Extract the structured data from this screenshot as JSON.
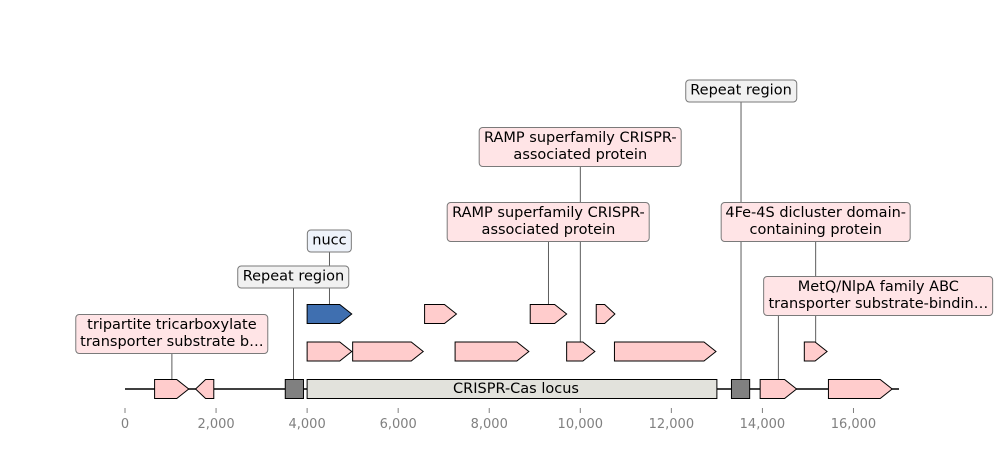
{
  "colors": {
    "gene": "#ffcccc",
    "nucc": "#3f6fb0",
    "repeat": "#808080",
    "locus": "#e2e2dc",
    "label_gene_bg": "#ffe4e6",
    "label_repeat_bg": "#f1f1f1",
    "label_nucc_bg": "#edf2fa",
    "axis_text": "#808080"
  },
  "locus": {
    "label": "CRISPR-Cas locus",
    "start": 4000,
    "end": 13000
  },
  "axis": {
    "min": 0,
    "max": 17000,
    "ticks": [
      0,
      2000,
      4000,
      6000,
      8000,
      10000,
      12000,
      14000,
      16000
    ]
  },
  "features": [
    {
      "id": "gene-1",
      "type": "gene",
      "start": 650,
      "end": 1400,
      "strand": 1,
      "lane": 0
    },
    {
      "id": "gene-2",
      "type": "gene",
      "start": 1550,
      "end": 1950,
      "strand": -1,
      "lane": 0
    },
    {
      "id": "repeat-1",
      "type": "repeat",
      "start": 3520,
      "end": 3920,
      "strand": 0,
      "lane": 0
    },
    {
      "id": "gene-3",
      "type": "gene",
      "start": 13950,
      "end": 14750,
      "strand": 1,
      "lane": 0
    },
    {
      "id": "repeat-2",
      "type": "repeat",
      "start": 13320,
      "end": 13720,
      "strand": 0,
      "lane": 0
    },
    {
      "id": "gene-4",
      "type": "gene",
      "start": 15450,
      "end": 16850,
      "strand": 1,
      "lane": 0
    },
    {
      "id": "gene-5",
      "type": "gene",
      "start": 4000,
      "end": 4980,
      "strand": 1,
      "lane": 1
    },
    {
      "id": "gene-6",
      "type": "gene",
      "start": 5000,
      "end": 6550,
      "strand": 1,
      "lane": 1
    },
    {
      "id": "gene-7",
      "type": "gene",
      "start": 7250,
      "end": 8870,
      "strand": 1,
      "lane": 1
    },
    {
      "id": "gene-8",
      "type": "gene",
      "start": 9700,
      "end": 10320,
      "strand": 1,
      "lane": 1
    },
    {
      "id": "gene-9",
      "type": "gene",
      "start": 10750,
      "end": 12980,
      "strand": 1,
      "lane": 1
    },
    {
      "id": "gene-10",
      "type": "gene",
      "start": 14920,
      "end": 15420,
      "strand": 1,
      "lane": 1
    },
    {
      "id": "nucc",
      "type": "nucc",
      "start": 4000,
      "end": 4980,
      "strand": 1,
      "lane": 2
    },
    {
      "id": "gene-11",
      "type": "gene",
      "start": 6580,
      "end": 7280,
      "strand": 1,
      "lane": 2
    },
    {
      "id": "gene-12",
      "type": "gene",
      "start": 8900,
      "end": 9700,
      "strand": 1,
      "lane": 2
    },
    {
      "id": "gene-13",
      "type": "gene",
      "start": 10350,
      "end": 10760,
      "strand": 1,
      "lane": 2
    }
  ],
  "labels": [
    {
      "text": "tripartite tricarboxylate\ntransporter substrate b…",
      "style": "gene",
      "anchor_bp": 1030,
      "target": "gene-1"
    },
    {
      "text": "Repeat region",
      "style": "repeat",
      "anchor_bp": 3700,
      "target": "repeat-1"
    },
    {
      "text": "nucc",
      "style": "nucc",
      "anchor_bp": 4490,
      "target": "nucc"
    },
    {
      "text": "RAMP superfamily CRISPR-\nassociated protein",
      "style": "gene",
      "anchor_bp": 9300,
      "target": "gene-12"
    },
    {
      "text": "RAMP superfamily CRISPR-\nassociated protein",
      "style": "gene",
      "anchor_bp": 10000,
      "target": "gene-8"
    },
    {
      "text": "Repeat region",
      "style": "repeat",
      "anchor_bp": 13530,
      "target": "repeat-2"
    },
    {
      "text": "MetQ/NlpA family ABC\ntransporter substrate-bindin…",
      "style": "gene",
      "anchor_bp": 14350,
      "target": "gene-3"
    },
    {
      "text": "4Fe-4S dicluster domain-\ncontaining protein",
      "style": "gene",
      "anchor_bp": 15170,
      "target": "gene-10"
    }
  ]
}
